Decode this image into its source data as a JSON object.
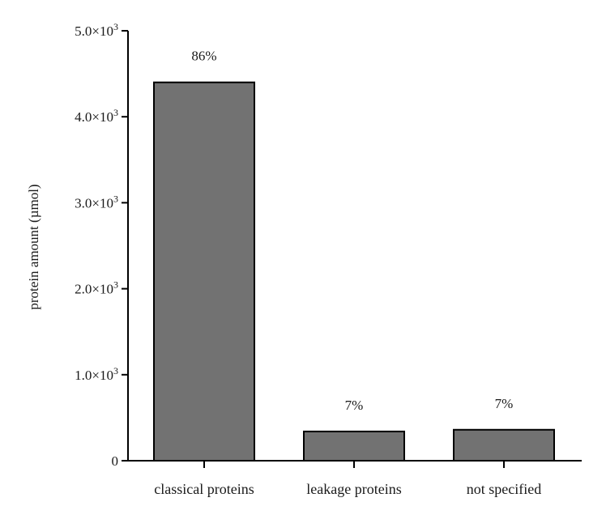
{
  "chart_data": {
    "type": "bar",
    "title": "",
    "xlabel": "",
    "ylabel": "protein amount (µmol)",
    "ylim": [
      0,
      5000
    ],
    "yticks": [
      0,
      1000,
      2000,
      3000,
      4000,
      5000
    ],
    "ytick_labels": [
      "0",
      "1.0×10",
      "2.0×10",
      "3.0×10",
      "4.0×10",
      "5.0×10"
    ],
    "ytick_exponent": "3",
    "categories": [
      "classical proteins",
      "leakage proteins",
      "not specified"
    ],
    "values": [
      4400,
      340,
      360
    ],
    "data_labels": [
      "86%",
      "7%",
      "7%"
    ],
    "grid": false,
    "colors": {
      "bar": "#727272",
      "axis": "#000000"
    }
  }
}
